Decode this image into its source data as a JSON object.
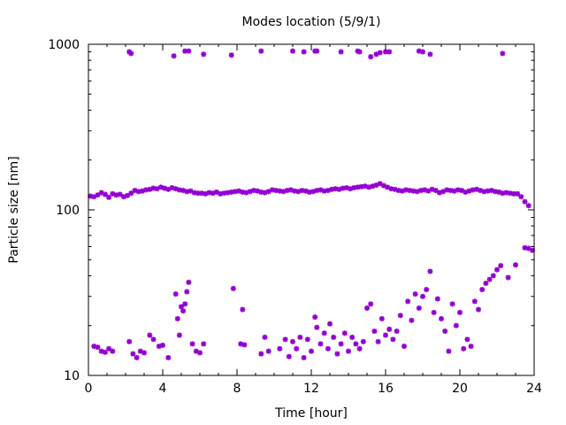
{
  "chart_data": {
    "type": "scatter",
    "title": "Modes location (5/9/1)",
    "xlabel": "Time [hour]",
    "ylabel": "Particle size [nm]",
    "xlim": [
      0,
      24
    ],
    "ylim": [
      10,
      1000
    ],
    "yscale": "log",
    "x_ticks": [
      0,
      4,
      8,
      12,
      16,
      20,
      24
    ],
    "x_tick_labels": [
      "0",
      "4",
      "8",
      "12",
      "16",
      "20",
      "24"
    ],
    "y_ticks": [
      10,
      100,
      1000
    ],
    "y_tick_labels": [
      "10",
      "100",
      "1000"
    ],
    "grid": false,
    "legend": "none",
    "marker_color": "#9400d3",
    "series": [
      {
        "values": [
          [
            2.2,
            900
          ],
          [
            2.3,
            880
          ],
          [
            4.6,
            850
          ],
          [
            5.2,
            910
          ],
          [
            5.4,
            910
          ],
          [
            6.2,
            870
          ],
          [
            7.7,
            860
          ],
          [
            9.3,
            910
          ],
          [
            11.0,
            910
          ],
          [
            11.6,
            900
          ],
          [
            12.2,
            910
          ],
          [
            12.3,
            910
          ],
          [
            13.6,
            900
          ],
          [
            14.5,
            910
          ],
          [
            14.6,
            900
          ],
          [
            15.2,
            840
          ],
          [
            15.5,
            870
          ],
          [
            15.7,
            890
          ],
          [
            16.0,
            900
          ],
          [
            16.2,
            900
          ],
          [
            17.8,
            910
          ],
          [
            18.0,
            900
          ],
          [
            18.4,
            870
          ],
          [
            22.3,
            880
          ],
          [
            0.1,
            121
          ],
          [
            0.3,
            120
          ],
          [
            0.5,
            123
          ],
          [
            0.7,
            127
          ],
          [
            0.9,
            124
          ],
          [
            1.1,
            119
          ],
          [
            1.3,
            125
          ],
          [
            1.5,
            123
          ],
          [
            1.7,
            124
          ],
          [
            1.9,
            120
          ],
          [
            2.1,
            122
          ],
          [
            2.3,
            126
          ],
          [
            2.5,
            131
          ],
          [
            2.7,
            129
          ],
          [
            2.9,
            130
          ],
          [
            3.1,
            132
          ],
          [
            3.3,
            133
          ],
          [
            3.5,
            135
          ],
          [
            3.7,
            134
          ],
          [
            3.9,
            137
          ],
          [
            4.1,
            135
          ],
          [
            4.3,
            133
          ],
          [
            4.5,
            136
          ],
          [
            4.7,
            134
          ],
          [
            4.9,
            132
          ],
          [
            5.1,
            131
          ],
          [
            5.3,
            129
          ],
          [
            5.5,
            130
          ],
          [
            5.7,
            127
          ],
          [
            5.9,
            126
          ],
          [
            6.1,
            126
          ],
          [
            6.3,
            125
          ],
          [
            6.5,
            127
          ],
          [
            6.7,
            126
          ],
          [
            6.9,
            128
          ],
          [
            7.1,
            125
          ],
          [
            7.3,
            126
          ],
          [
            7.5,
            127
          ],
          [
            7.7,
            128
          ],
          [
            7.9,
            129
          ],
          [
            8.1,
            130
          ],
          [
            8.3,
            128
          ],
          [
            8.5,
            127
          ],
          [
            8.7,
            129
          ],
          [
            8.9,
            131
          ],
          [
            9.1,
            130
          ],
          [
            9.3,
            128
          ],
          [
            9.5,
            127
          ],
          [
            9.7,
            129
          ],
          [
            9.9,
            132
          ],
          [
            10.1,
            131
          ],
          [
            10.3,
            130
          ],
          [
            10.5,
            129
          ],
          [
            10.7,
            131
          ],
          [
            10.9,
            132
          ],
          [
            11.1,
            130
          ],
          [
            11.3,
            129
          ],
          [
            11.5,
            131
          ],
          [
            11.7,
            130
          ],
          [
            11.9,
            128
          ],
          [
            12.1,
            129
          ],
          [
            12.3,
            131
          ],
          [
            12.5,
            132
          ],
          [
            12.7,
            130
          ],
          [
            12.9,
            131
          ],
          [
            13.1,
            133
          ],
          [
            13.3,
            134
          ],
          [
            13.5,
            133
          ],
          [
            13.7,
            135
          ],
          [
            13.9,
            136
          ],
          [
            14.1,
            134
          ],
          [
            14.3,
            136
          ],
          [
            14.5,
            137
          ],
          [
            14.7,
            138
          ],
          [
            14.9,
            139
          ],
          [
            15.1,
            137
          ],
          [
            15.3,
            139
          ],
          [
            15.5,
            141
          ],
          [
            15.7,
            144
          ],
          [
            15.9,
            140
          ],
          [
            16.1,
            137
          ],
          [
            16.3,
            134
          ],
          [
            16.5,
            133
          ],
          [
            16.7,
            131
          ],
          [
            16.9,
            130
          ],
          [
            17.1,
            132
          ],
          [
            17.3,
            131
          ],
          [
            17.5,
            130
          ],
          [
            17.7,
            129
          ],
          [
            17.9,
            131
          ],
          [
            18.1,
            132
          ],
          [
            18.3,
            130
          ],
          [
            18.5,
            133
          ],
          [
            18.7,
            131
          ],
          [
            18.9,
            127
          ],
          [
            19.1,
            129
          ],
          [
            19.3,
            132
          ],
          [
            19.5,
            131
          ],
          [
            19.7,
            130
          ],
          [
            19.9,
            132
          ],
          [
            20.1,
            131
          ],
          [
            20.3,
            128
          ],
          [
            20.5,
            130
          ],
          [
            20.7,
            132
          ],
          [
            20.9,
            133
          ],
          [
            21.1,
            131
          ],
          [
            21.3,
            129
          ],
          [
            21.5,
            130
          ],
          [
            21.7,
            131
          ],
          [
            21.9,
            129
          ],
          [
            22.1,
            128
          ],
          [
            22.3,
            126
          ],
          [
            22.5,
            127
          ],
          [
            22.7,
            126
          ],
          [
            22.9,
            125
          ],
          [
            23.1,
            125
          ],
          [
            23.3,
            120
          ],
          [
            23.5,
            112
          ],
          [
            23.7,
            106
          ],
          [
            0.3,
            15
          ],
          [
            0.5,
            14.8
          ],
          [
            0.7,
            14
          ],
          [
            0.9,
            13.8
          ],
          [
            1.1,
            14.5
          ],
          [
            1.3,
            14
          ],
          [
            2.2,
            16
          ],
          [
            2.4,
            13.5
          ],
          [
            2.6,
            12.8
          ],
          [
            2.8,
            14
          ],
          [
            3.0,
            13.7
          ],
          [
            3.3,
            17.5
          ],
          [
            3.5,
            16.5
          ],
          [
            3.8,
            15
          ],
          [
            4.0,
            15.2
          ],
          [
            4.3,
            12.8
          ],
          [
            4.7,
            31
          ],
          [
            4.8,
            22
          ],
          [
            4.9,
            17.5
          ],
          [
            5.0,
            26
          ],
          [
            5.1,
            24.5
          ],
          [
            5.2,
            27
          ],
          [
            5.3,
            32
          ],
          [
            5.4,
            36.5
          ],
          [
            5.6,
            15.5
          ],
          [
            5.8,
            14
          ],
          [
            6.0,
            13.7
          ],
          [
            6.2,
            15.5
          ],
          [
            7.8,
            33.5
          ],
          [
            8.2,
            15.5
          ],
          [
            8.3,
            25
          ],
          [
            8.4,
            15.3
          ],
          [
            9.3,
            13.5
          ],
          [
            9.5,
            17
          ],
          [
            9.7,
            14
          ],
          [
            10.3,
            14.5
          ],
          [
            10.6,
            16.5
          ],
          [
            10.8,
            13
          ],
          [
            11.0,
            16
          ],
          [
            11.2,
            14.5
          ],
          [
            11.4,
            17
          ],
          [
            11.6,
            12.8
          ],
          [
            11.8,
            16.5
          ],
          [
            12.0,
            14
          ],
          [
            12.2,
            22.5
          ],
          [
            12.3,
            19.5
          ],
          [
            12.5,
            15.5
          ],
          [
            12.7,
            18
          ],
          [
            12.9,
            14.5
          ],
          [
            13.0,
            20.5
          ],
          [
            13.2,
            17
          ],
          [
            13.4,
            13.5
          ],
          [
            13.6,
            15.5
          ],
          [
            13.8,
            18
          ],
          [
            14.0,
            14
          ],
          [
            14.2,
            17
          ],
          [
            14.4,
            15.5
          ],
          [
            14.6,
            14.5
          ],
          [
            14.8,
            16
          ],
          [
            15.0,
            25.5
          ],
          [
            15.2,
            27
          ],
          [
            15.4,
            18.5
          ],
          [
            15.6,
            16
          ],
          [
            15.8,
            22
          ],
          [
            16.0,
            17.5
          ],
          [
            16.2,
            19
          ],
          [
            16.4,
            16.5
          ],
          [
            16.6,
            18.5
          ],
          [
            16.8,
            23
          ],
          [
            17.0,
            15
          ],
          [
            17.2,
            28
          ],
          [
            17.4,
            21.5
          ],
          [
            17.6,
            31
          ],
          [
            17.8,
            25.5
          ],
          [
            18.0,
            30
          ],
          [
            18.2,
            33
          ],
          [
            18.4,
            42.5
          ],
          [
            18.6,
            24
          ],
          [
            18.8,
            29
          ],
          [
            19.0,
            22
          ],
          [
            19.2,
            18.5
          ],
          [
            19.4,
            14
          ],
          [
            19.6,
            27
          ],
          [
            19.8,
            20
          ],
          [
            20.0,
            24
          ],
          [
            20.2,
            14.5
          ],
          [
            20.4,
            16.5
          ],
          [
            20.6,
            15
          ],
          [
            20.8,
            28
          ],
          [
            21.0,
            25
          ],
          [
            21.2,
            33
          ],
          [
            21.4,
            36
          ],
          [
            21.6,
            38
          ],
          [
            21.8,
            40
          ],
          [
            22.0,
            43.5
          ],
          [
            22.2,
            46
          ],
          [
            22.6,
            39
          ],
          [
            23.0,
            46.5
          ],
          [
            23.5,
            59
          ],
          [
            23.7,
            58.5
          ],
          [
            23.9,
            57
          ]
        ]
      }
    ]
  }
}
